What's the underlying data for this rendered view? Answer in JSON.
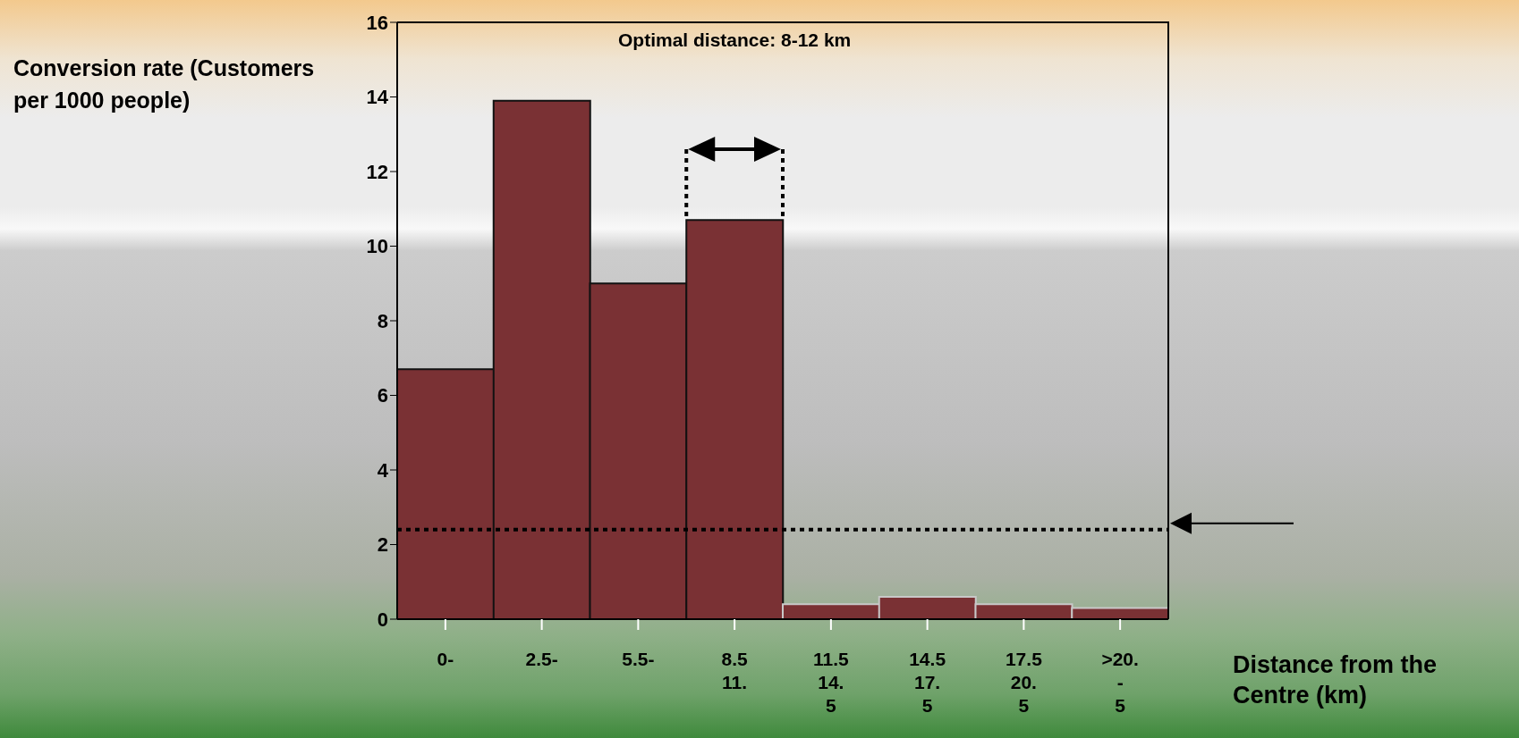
{
  "chart_data": {
    "type": "bar",
    "categories": [
      "0-",
      "2.5-",
      "5.5-",
      "8.5\n11.",
      "11.5\n14.\n5",
      "14.5\n17.\n5",
      "17.5\n20.\n5",
      ">20.\n-\n5"
    ],
    "values": [
      6.7,
      13.9,
      9.0,
      10.7,
      0.4,
      0.6,
      0.4,
      0.3
    ],
    "color": "#7a3134",
    "ylabel": "Conversion rate (Customers per 1000 people)",
    "xlabel": "Distance from the Centre (km)",
    "annotations": [
      "Optimal distance: 8-12 km"
    ],
    "ylim": [
      0,
      16
    ],
    "yticks": [
      0,
      2,
      4,
      6,
      8,
      10,
      12,
      14,
      16
    ],
    "ref_lines": [
      {
        "axis": "y",
        "value": 2.4,
        "color": "#000000",
        "line_style": "dotted"
      }
    ],
    "grid": false,
    "legend": false
  }
}
